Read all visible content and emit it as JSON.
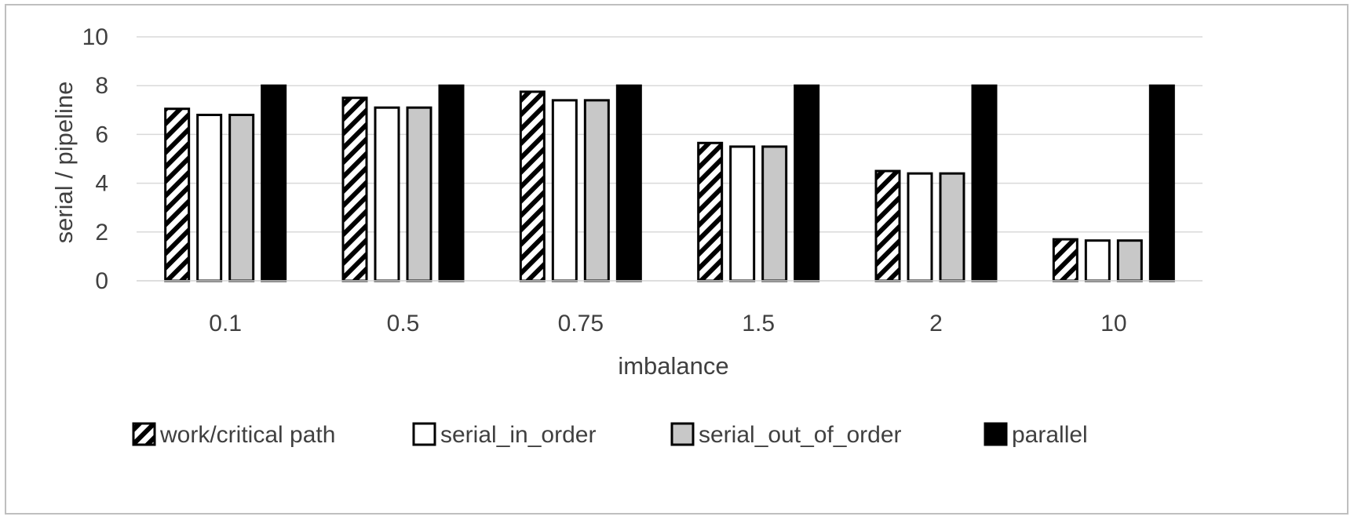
{
  "chart_data": {
    "type": "bar",
    "xlabel": "imbalance",
    "ylabel": "serial / pipeline",
    "ylim": [
      0,
      10
    ],
    "yticks": [
      "0",
      "2",
      "4",
      "6",
      "8",
      "10"
    ],
    "grid": true,
    "legend_position": "bottom",
    "categories": [
      "0.1",
      "0.5",
      "0.75",
      "1.5",
      "2",
      "10"
    ],
    "series": [
      {
        "name": "work/critical path",
        "values": [
          7.05,
          7.5,
          7.75,
          5.65,
          4.5,
          1.7
        ],
        "style": "hatched",
        "color": "#000000"
      },
      {
        "name": "serial_in_order",
        "values": [
          6.8,
          7.1,
          7.4,
          5.5,
          4.4,
          1.65
        ],
        "style": "solid",
        "color": "#ffffff"
      },
      {
        "name": "serial_out_of_order",
        "values": [
          6.8,
          7.1,
          7.4,
          5.5,
          4.4,
          1.65
        ],
        "style": "solid",
        "color": "#c8c8c8"
      },
      {
        "name": "parallel",
        "values": [
          8,
          8,
          8,
          8,
          8,
          8
        ],
        "style": "solid",
        "color": "#000000"
      }
    ],
    "colors": {
      "gridline": "#d9d9d9",
      "axis_text": "#404040",
      "frame": "#bfbfbf"
    }
  }
}
